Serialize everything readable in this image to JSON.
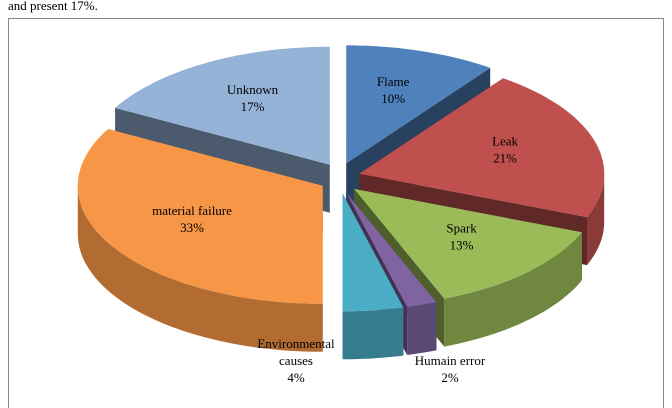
{
  "caption": "and present 17%.",
  "chart_data": {
    "type": "pie3d",
    "categories": [
      "Flame",
      "Leak",
      "Spark",
      "Humain error",
      "Environmental causes",
      "material failure",
      "Unknown"
    ],
    "values": [
      10,
      21,
      13,
      2,
      4,
      33,
      17
    ],
    "value_labels": [
      "10%",
      "21%",
      "13%",
      "2%",
      "4%",
      "33%",
      "17%"
    ],
    "colors": [
      "#4f81bd",
      "#c0504d",
      "#9bbb59",
      "#8064a2",
      "#4bacc6",
      "#f79646",
      "#95b3d7"
    ]
  }
}
